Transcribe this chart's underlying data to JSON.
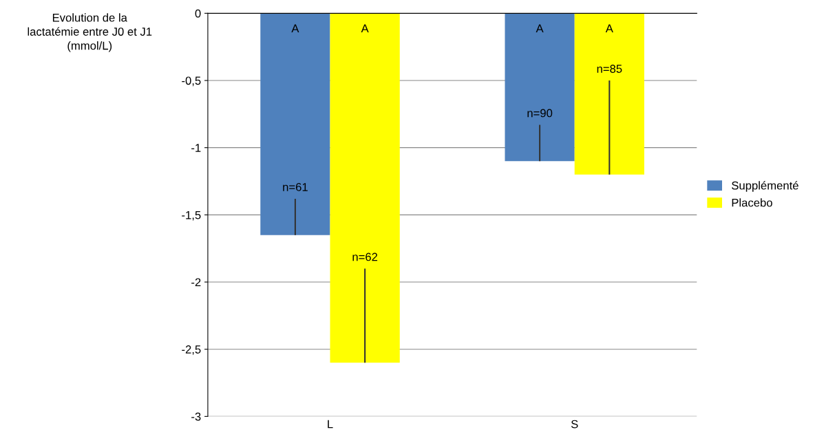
{
  "chart_data": {
    "type": "bar",
    "ylabel": "Evolution de la\nlactatémie entre J0 et J1\n(mmol/L)",
    "categories": [
      "L",
      "S"
    ],
    "series": [
      {
        "name": "Supplémenté",
        "color": "#4f81bd",
        "values": [
          -1.65,
          -1.1
        ],
        "errors": [
          [
            -1.65,
            -1.38
          ],
          [
            -1.1,
            -0.83
          ]
        ]
      },
      {
        "name": "Placebo",
        "color": "#ffff00",
        "values": [
          -2.6,
          -1.2
        ],
        "errors": [
          [
            -2.6,
            -1.9
          ],
          [
            -1.2,
            -0.5
          ]
        ]
      }
    ],
    "annotations": [
      "A",
      "A",
      "A",
      "A",
      "n=61",
      "n=90",
      "n=62",
      "n=85"
    ],
    "ylim": [
      -3,
      0
    ],
    "yticks": [
      -3,
      {
        "value": -2.5,
        "label": "-2,5"
      },
      -2,
      {
        "value": -1.5,
        "label": "-1,5"
      },
      -1,
      {
        "value": -0.5,
        "label": "-0,5"
      },
      0
    ],
    "grid": "y",
    "legend": "right"
  }
}
